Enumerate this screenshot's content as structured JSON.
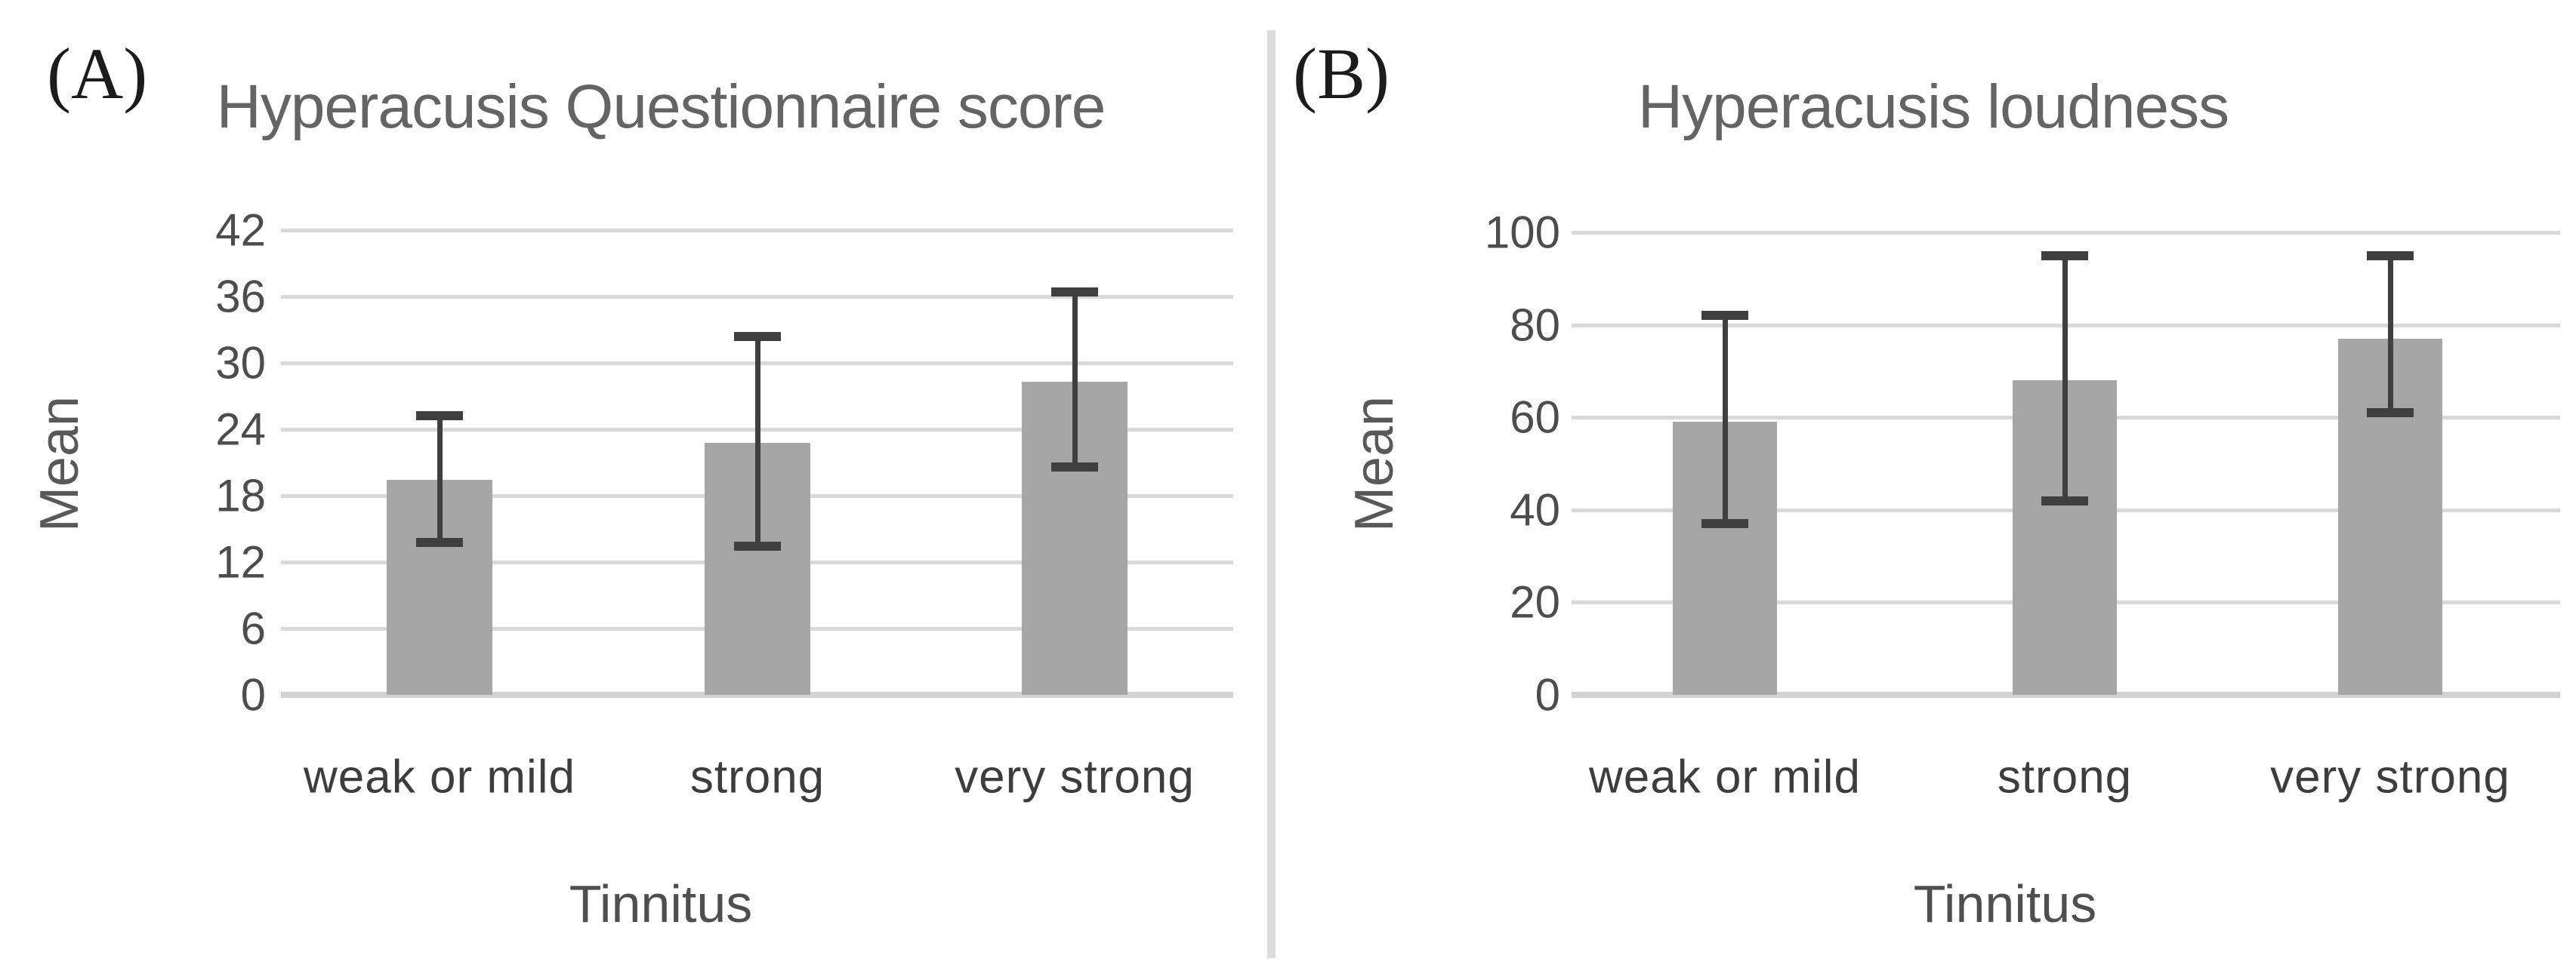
{
  "figure_type": "two-panel bar chart figure with error bars",
  "colors": {
    "background": "#ffffff",
    "bar_fill": "#a6a6a6",
    "error_bar": "#3f3f3f",
    "gridline": "#d9d9d9",
    "baseline": "#d3d3d3",
    "title_text": "#646464",
    "tick_text": "#4d4d4d",
    "category_text": "#3d3d3d",
    "axis_label_text": "#595959",
    "panel_letter_text": "#1c1c1c",
    "divider": "#dcdcdc"
  },
  "chart_data": [
    {
      "type": "bar",
      "panel_label": "(A)",
      "title": "Hyperacusis Questionnaire score",
      "xlabel": "Tinnitus",
      "ylabel": "Mean",
      "categories": [
        "weak or mild",
        "strong",
        "very strong"
      ],
      "values": [
        19.4,
        22.8,
        28.3
      ],
      "error_low": [
        13.8,
        13.4,
        20.6
      ],
      "error_high": [
        25.2,
        32.4,
        36.4
      ],
      "yticks": [
        42,
        36,
        30,
        24,
        18,
        12,
        6,
        0
      ],
      "ylim": [
        0,
        42
      ],
      "grid": true,
      "legend": "none"
    },
    {
      "type": "bar",
      "panel_label": "(B)",
      "title": "Hyperacusis loudness",
      "xlabel": "Tinnitus",
      "ylabel": "Mean",
      "categories": [
        "weak or mild",
        "strong",
        "very strong"
      ],
      "values": [
        59,
        68,
        77
      ],
      "error_low": [
        37,
        42,
        61
      ],
      "error_high": [
        82,
        95,
        95
      ],
      "yticks": [
        100,
        80,
        60,
        40,
        20,
        0
      ],
      "ylim": [
        0,
        100
      ],
      "grid": true,
      "legend": "none"
    }
  ]
}
